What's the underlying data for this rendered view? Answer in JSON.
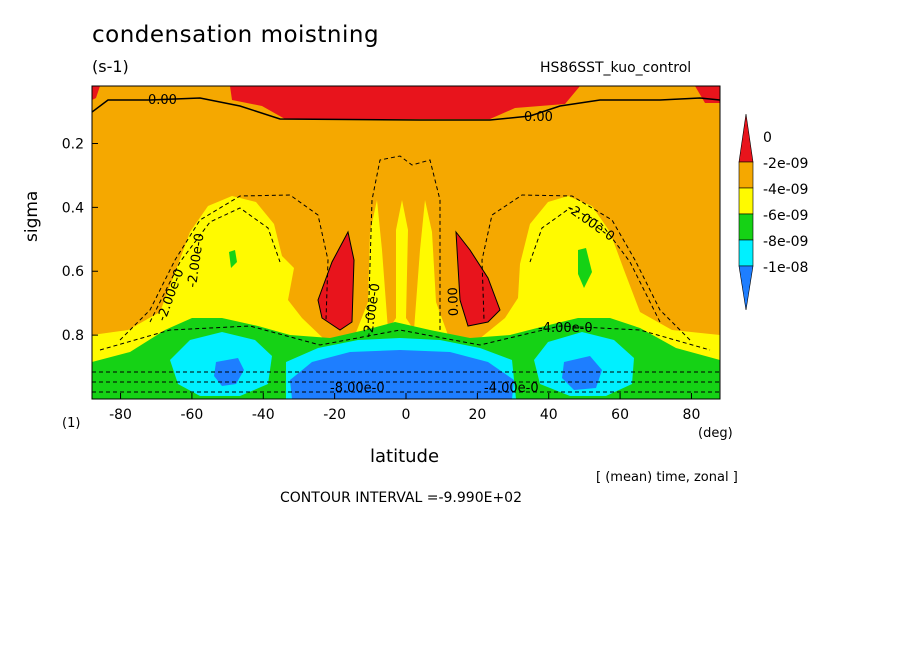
{
  "chart_data": {
    "type": "heatmap",
    "title": "condensation moistning",
    "units": "(s-1)",
    "dataset": "HS86SST_kuo_control",
    "xlabel": "latitude",
    "xunit": "(deg)",
    "ylabel": "sigma",
    "level_note": "(1)",
    "averaging": "[ (mean) time, zonal ]",
    "contour_interval": "CONTOUR INTERVAL =-9.990E+02",
    "xlim": [
      -88,
      88
    ],
    "ylim": [
      0.02,
      1.0
    ],
    "y_reversed": true,
    "x_ticks": [
      "-80",
      "-60",
      "-40",
      "-20",
      "0",
      "20",
      "40",
      "60",
      "80"
    ],
    "y_ticks": [
      "0.2",
      "0.4",
      "0.6",
      "0.8"
    ],
    "legend": [
      {
        "label": "0",
        "color": "#e8141c"
      },
      {
        "label": "-2e-09",
        "color": "#f5a800"
      },
      {
        "label": "-4e-09",
        "color": "#fffa00"
      },
      {
        "label": "-6e-09",
        "color": "#15d215"
      },
      {
        "label": "-8e-09",
        "color": "#00f0ff"
      },
      {
        "label": "-1e-08",
        "color": "#1e7eff"
      }
    ],
    "contour_labels": [
      "0.00",
      "0.00",
      "-2.00e-0",
      "-2.00e-0",
      "-2.00e-0",
      "0.00",
      "-2.00e-0",
      "-4.00e-0",
      "-8.00e-0",
      "-4.00e-0"
    ],
    "colors": {
      "background": "#f5a800",
      "positive": "#e8141c",
      "minus2": "#fffa00",
      "minus4": "#15d215",
      "minus6": "#00f0ff",
      "minus8": "#1e7eff"
    }
  }
}
